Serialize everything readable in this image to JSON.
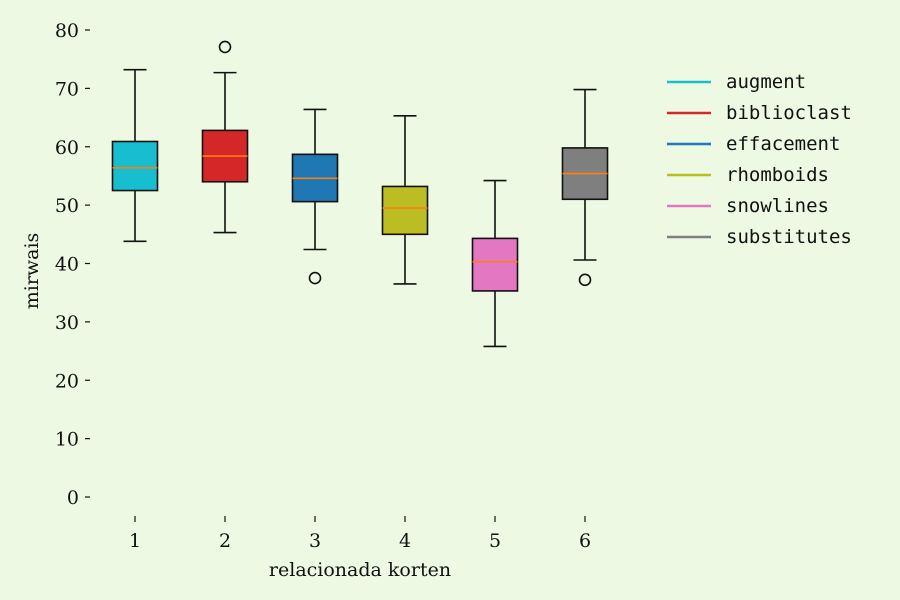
{
  "chart_data": {
    "type": "box",
    "xlabel": "relacionada korten",
    "ylabel": "mirwais",
    "ylim": [
      0,
      80
    ],
    "yticks": [
      0,
      10,
      20,
      30,
      40,
      50,
      60,
      70,
      80
    ],
    "categories": [
      "1",
      "2",
      "3",
      "4",
      "5",
      "6"
    ],
    "series": [
      {
        "name": "augment",
        "color": "#17becf",
        "whisker_low": 43.8,
        "q1": 52.5,
        "median": 56.4,
        "q3": 60.9,
        "whisker_high": 73.2,
        "outliers": []
      },
      {
        "name": "biblioclast",
        "color": "#d62728",
        "whisker_low": 45.3,
        "q1": 54.0,
        "median": 58.4,
        "q3": 62.8,
        "whisker_high": 72.7,
        "outliers": [
          77.1
        ]
      },
      {
        "name": "effacement",
        "color": "#1f77b4",
        "whisker_low": 42.4,
        "q1": 50.6,
        "median": 54.6,
        "q3": 58.7,
        "whisker_high": 66.4,
        "outliers": [
          37.5
        ]
      },
      {
        "name": "rhomboids",
        "color": "#bcbd22",
        "whisker_low": 36.5,
        "q1": 45.0,
        "median": 49.5,
        "q3": 53.2,
        "whisker_high": 65.3,
        "outliers": []
      },
      {
        "name": "snowlines",
        "color": "#e377c2",
        "whisker_low": 25.8,
        "q1": 35.3,
        "median": 40.3,
        "q3": 44.3,
        "whisker_high": 54.2,
        "outliers": []
      },
      {
        "name": "substitutes",
        "color": "#7f7f7f",
        "whisker_low": 40.6,
        "q1": 51.0,
        "median": 55.4,
        "q3": 59.8,
        "whisker_high": 69.8,
        "outliers": [
          37.2
        ]
      }
    ],
    "median_color": "#ff7f0e",
    "grid": false,
    "legend_position": "upper right, outside plot"
  }
}
